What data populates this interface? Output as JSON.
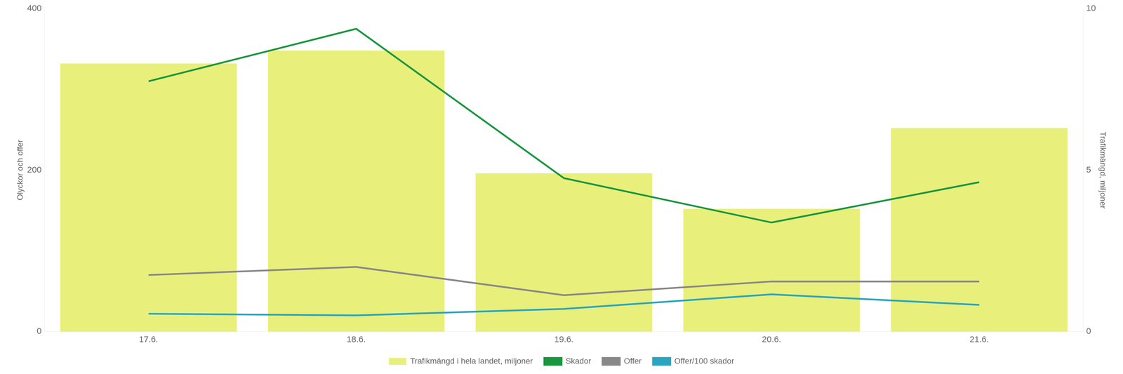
{
  "chart_data": {
    "type": "bar",
    "categories": [
      "17.6.",
      "18.6.",
      "19.6.",
      "20.6.",
      "21.6."
    ],
    "series": [
      {
        "name": "Trafikmängd i hela landet, miljoner",
        "type": "bar",
        "color": "#e8ef7a",
        "axis": "y2",
        "values": [
          8.3,
          8.7,
          4.9,
          3.8,
          6.3
        ]
      },
      {
        "name": "Skador",
        "type": "line",
        "color": "#1a9641",
        "values": [
          310,
          375,
          190,
          135,
          185
        ]
      },
      {
        "name": "Offer",
        "type": "line",
        "color": "#888888",
        "values": [
          70,
          80,
          45,
          62,
          62
        ]
      },
      {
        "name": "Offer/100 skador",
        "type": "line",
        "color": "#2aa5c0",
        "values": [
          22,
          20,
          28,
          46,
          33
        ]
      }
    ],
    "ylabel": "Olyckor och offer",
    "y2label": "Trafikmängd, miljoner",
    "ylim": [
      0,
      400
    ],
    "yticks": [
      0,
      200,
      400
    ],
    "y2lim": [
      0,
      10
    ],
    "y2ticks": [
      0,
      5,
      10
    ],
    "grid": false,
    "legend": "bottom"
  }
}
